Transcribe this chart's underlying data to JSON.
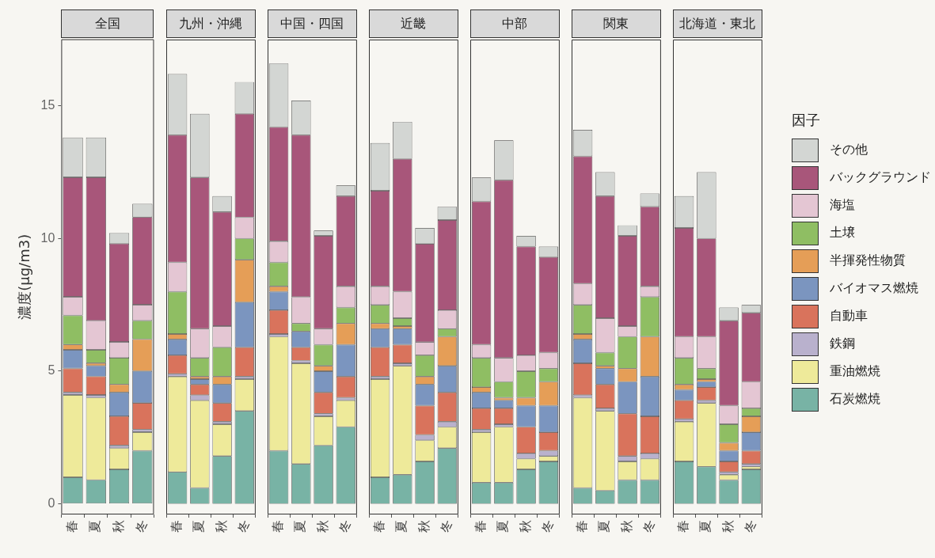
{
  "chart_data": [
    {
      "type": "bar",
      "stacked": true,
      "title": "全国",
      "ylabel": "濃度(µg/m3)",
      "legend": "right",
      "legend_title": "因子",
      "categories": [
        "春",
        "夏",
        "秋",
        "冬"
      ],
      "ylim": [
        -0.4,
        17.5
      ],
      "yticks": [
        0,
        5,
        10,
        15
      ],
      "series": [
        {
          "name": "石炭燃焼",
          "color": "#78b3a5",
          "values": [
            1.0,
            0.9,
            1.3,
            2.0
          ]
        },
        {
          "name": "重油燃焼",
          "color": "#eeea9a",
          "values": [
            3.1,
            3.1,
            0.8,
            0.7
          ]
        },
        {
          "name": "鉄鋼",
          "color": "#b9b1cd",
          "values": [
            0.1,
            0.1,
            0.1,
            0.1
          ]
        },
        {
          "name": "自動車",
          "color": "#d9735c",
          "values": [
            0.9,
            0.7,
            1.1,
            1.0
          ]
        },
        {
          "name": "バイオマス燃焼",
          "color": "#7b95bf",
          "values": [
            0.7,
            0.4,
            0.9,
            1.2
          ]
        },
        {
          "name": "半揮発性物質",
          "color": "#e59e57",
          "values": [
            0.2,
            0.1,
            0.3,
            1.2
          ]
        },
        {
          "name": "土壌",
          "color": "#8fbe63",
          "values": [
            1.1,
            0.5,
            1.0,
            0.7
          ]
        },
        {
          "name": "海塩",
          "color": "#e4c6d3",
          "values": [
            0.7,
            1.1,
            0.6,
            0.6
          ]
        },
        {
          "name": "バックグラウンド",
          "color": "#a8567a",
          "values": [
            4.5,
            5.4,
            3.7,
            3.3
          ]
        },
        {
          "name": "その他",
          "color": "#d3d6d3",
          "values": [
            1.5,
            1.5,
            0.4,
            0.5
          ]
        }
      ]
    },
    {
      "type": "bar",
      "stacked": true,
      "title": "九州・沖縄",
      "tick_labels": "x",
      "categories": [
        "春",
        "夏",
        "秋",
        "冬"
      ],
      "ylim": [
        -0.4,
        17.5
      ],
      "yticks": [
        0,
        5,
        10,
        15
      ],
      "series": [
        {
          "color": "#78b3a5",
          "values": [
            1.2,
            0.6,
            1.8,
            3.5
          ]
        },
        {
          "color": "#eeea9a",
          "values": [
            3.6,
            3.3,
            1.2,
            1.2
          ]
        },
        {
          "color": "#b9b1cd",
          "values": [
            0.1,
            0.2,
            0.1,
            0.1
          ]
        },
        {
          "color": "#d9735c",
          "values": [
            0.7,
            0.4,
            0.7,
            1.1
          ]
        },
        {
          "color": "#7b95bf",
          "values": [
            0.6,
            0.2,
            0.7,
            1.7
          ]
        },
        {
          "color": "#e59e57",
          "values": [
            0.2,
            0.1,
            0.3,
            1.6
          ]
        },
        {
          "color": "#8fbe63",
          "values": [
            1.6,
            0.7,
            1.1,
            0.8
          ]
        },
        {
          "color": "#e4c6d3",
          "values": [
            1.1,
            1.1,
            0.8,
            0.8
          ]
        },
        {
          "color": "#a8567a",
          "values": [
            4.8,
            5.7,
            4.3,
            3.9
          ]
        },
        {
          "color": "#d3d6d3",
          "values": [
            2.3,
            2.4,
            0.6,
            1.2
          ]
        }
      ]
    },
    {
      "type": "bar",
      "stacked": true,
      "title": "中国・四国",
      "tick_labels": "x",
      "categories": [
        "春",
        "夏",
        "秋",
        "冬"
      ],
      "ylim": [
        -0.4,
        17.5
      ],
      "yticks": [
        0,
        5,
        10,
        15
      ],
      "series": [
        {
          "color": "#78b3a5",
          "values": [
            2.0,
            1.5,
            2.2,
            2.9
          ]
        },
        {
          "color": "#eeea9a",
          "values": [
            4.3,
            3.8,
            1.1,
            1.0
          ]
        },
        {
          "color": "#b9b1cd",
          "values": [
            0.1,
            0.1,
            0.1,
            0.1
          ]
        },
        {
          "color": "#d9735c",
          "values": [
            0.9,
            0.5,
            0.8,
            0.8
          ]
        },
        {
          "color": "#7b95bf",
          "values": [
            0.7,
            0.6,
            0.8,
            1.2
          ]
        },
        {
          "color": "#e59e57",
          "values": [
            0.2,
            0,
            0.2,
            0.8
          ]
        },
        {
          "color": "#8fbe63",
          "values": [
            0.9,
            0.3,
            0.8,
            0.6
          ]
        },
        {
          "color": "#e4c6d3",
          "values": [
            0.8,
            1.0,
            0.6,
            0.8
          ]
        },
        {
          "color": "#a8567a",
          "values": [
            4.3,
            6.1,
            3.5,
            3.4
          ]
        },
        {
          "color": "#d3d6d3",
          "values": [
            2.4,
            1.3,
            0.2,
            0.4
          ]
        }
      ]
    },
    {
      "type": "bar",
      "stacked": true,
      "title": "近畿",
      "tick_labels": "x",
      "categories": [
        "春",
        "夏",
        "秋",
        "冬"
      ],
      "ylim": [
        -0.4,
        17.5
      ],
      "yticks": [
        0,
        5,
        10,
        15
      ],
      "series": [
        {
          "color": "#78b3a5",
          "values": [
            1.0,
            1.1,
            1.6,
            2.1
          ]
        },
        {
          "color": "#eeea9a",
          "values": [
            3.7,
            4.1,
            0.8,
            0.8
          ]
        },
        {
          "color": "#b9b1cd",
          "values": [
            0.1,
            0.1,
            0.2,
            0.2
          ]
        },
        {
          "color": "#d9735c",
          "values": [
            1.1,
            0.7,
            1.1,
            1.1
          ]
        },
        {
          "color": "#7b95bf",
          "values": [
            0.7,
            0.6,
            0.8,
            1.0
          ]
        },
        {
          "color": "#e59e57",
          "values": [
            0.2,
            0.1,
            0.3,
            1.1
          ]
        },
        {
          "color": "#8fbe63",
          "values": [
            0.7,
            0.3,
            0.8,
            0.3
          ]
        },
        {
          "color": "#e4c6d3",
          "values": [
            0.7,
            1.0,
            0.5,
            0.7
          ]
        },
        {
          "color": "#a8567a",
          "values": [
            3.6,
            5.0,
            3.7,
            3.4
          ]
        },
        {
          "color": "#d3d6d3",
          "values": [
            1.8,
            1.4,
            0.6,
            0.5
          ]
        }
      ]
    },
    {
      "type": "bar",
      "stacked": true,
      "title": "中部",
      "tick_labels": "x",
      "categories": [
        "春",
        "夏",
        "秋",
        "冬"
      ],
      "ylim": [
        -0.4,
        17.5
      ],
      "yticks": [
        0,
        5,
        10,
        15
      ],
      "series": [
        {
          "color": "#78b3a5",
          "values": [
            0.8,
            0.8,
            1.3,
            1.6
          ]
        },
        {
          "color": "#eeea9a",
          "values": [
            1.9,
            2.1,
            0.4,
            0.2
          ]
        },
        {
          "color": "#b9b1cd",
          "values": [
            0.1,
            0.1,
            0.2,
            0.2
          ]
        },
        {
          "color": "#d9735c",
          "values": [
            0.8,
            0.6,
            1.0,
            0.7
          ]
        },
        {
          "color": "#7b95bf",
          "values": [
            0.6,
            0.3,
            0.8,
            1.0
          ]
        },
        {
          "color": "#e59e57",
          "values": [
            0.2,
            0.1,
            0.3,
            0.9
          ]
        },
        {
          "color": "#8fbe63",
          "values": [
            1.1,
            0.6,
            1.0,
            0.5
          ]
        },
        {
          "color": "#e4c6d3",
          "values": [
            0.5,
            0.9,
            0.6,
            0.6
          ]
        },
        {
          "color": "#a8567a",
          "values": [
            5.4,
            6.7,
            4.1,
            3.6
          ]
        },
        {
          "color": "#d3d6d3",
          "values": [
            0.9,
            1.5,
            0.4,
            0.4
          ]
        }
      ]
    },
    {
      "type": "bar",
      "stacked": true,
      "title": "関東",
      "tick_labels": "x",
      "categories": [
        "春",
        "夏",
        "秋",
        "冬"
      ],
      "ylim": [
        -0.4,
        17.5
      ],
      "yticks": [
        0,
        5,
        10,
        15
      ],
      "series": [
        {
          "color": "#78b3a5",
          "values": [
            0.6,
            0.5,
            0.9,
            0.9
          ]
        },
        {
          "color": "#eeea9a",
          "values": [
            3.4,
            3.0,
            0.7,
            0.8
          ]
        },
        {
          "color": "#b9b1cd",
          "values": [
            0.1,
            0.1,
            0.2,
            0.2
          ]
        },
        {
          "color": "#d9735c",
          "values": [
            1.2,
            0.9,
            1.6,
            1.4
          ]
        },
        {
          "color": "#7b95bf",
          "values": [
            0.9,
            0.6,
            1.2,
            1.5
          ]
        },
        {
          "color": "#e59e57",
          "values": [
            0.2,
            0.1,
            0.5,
            1.5
          ]
        },
        {
          "color": "#8fbe63",
          "values": [
            1.1,
            0.5,
            1.2,
            1.5
          ]
        },
        {
          "color": "#e4c6d3",
          "values": [
            0.8,
            1.3,
            0.4,
            0.4
          ]
        },
        {
          "color": "#a8567a",
          "values": [
            4.8,
            4.6,
            3.4,
            3.0
          ]
        },
        {
          "color": "#d3d6d3",
          "values": [
            1.0,
            0.9,
            0.4,
            0.5
          ]
        }
      ]
    },
    {
      "type": "bar",
      "stacked": true,
      "title": "北海道・東北",
      "tick_labels": "x",
      "categories": [
        "春",
        "夏",
        "秋",
        "冬"
      ],
      "ylim": [
        -0.4,
        17.5
      ],
      "yticks": [
        0,
        5,
        10,
        15
      ],
      "series": [
        {
          "color": "#78b3a5",
          "values": [
            1.6,
            1.4,
            0.9,
            1.3
          ]
        },
        {
          "color": "#eeea9a",
          "values": [
            1.5,
            2.4,
            0.2,
            0.1
          ]
        },
        {
          "color": "#b9b1cd",
          "values": [
            0.1,
            0.1,
            0.1,
            0.1
          ]
        },
        {
          "color": "#d9735c",
          "values": [
            0.7,
            0.5,
            0.4,
            0.5
          ]
        },
        {
          "color": "#7b95bf",
          "values": [
            0.4,
            0.2,
            0.4,
            0.7
          ]
        },
        {
          "color": "#e59e57",
          "values": [
            0.2,
            0.1,
            0.3,
            0.6
          ]
        },
        {
          "color": "#8fbe63",
          "values": [
            1.0,
            0.4,
            0.7,
            0.3
          ]
        },
        {
          "color": "#e4c6d3",
          "values": [
            0.8,
            1.2,
            0.7,
            1.0
          ]
        },
        {
          "color": "#a8567a",
          "values": [
            4.1,
            3.7,
            3.2,
            2.6
          ]
        },
        {
          "color": "#d3d6d3",
          "values": [
            1.2,
            2.5,
            0.5,
            0.3
          ]
        }
      ]
    }
  ]
}
